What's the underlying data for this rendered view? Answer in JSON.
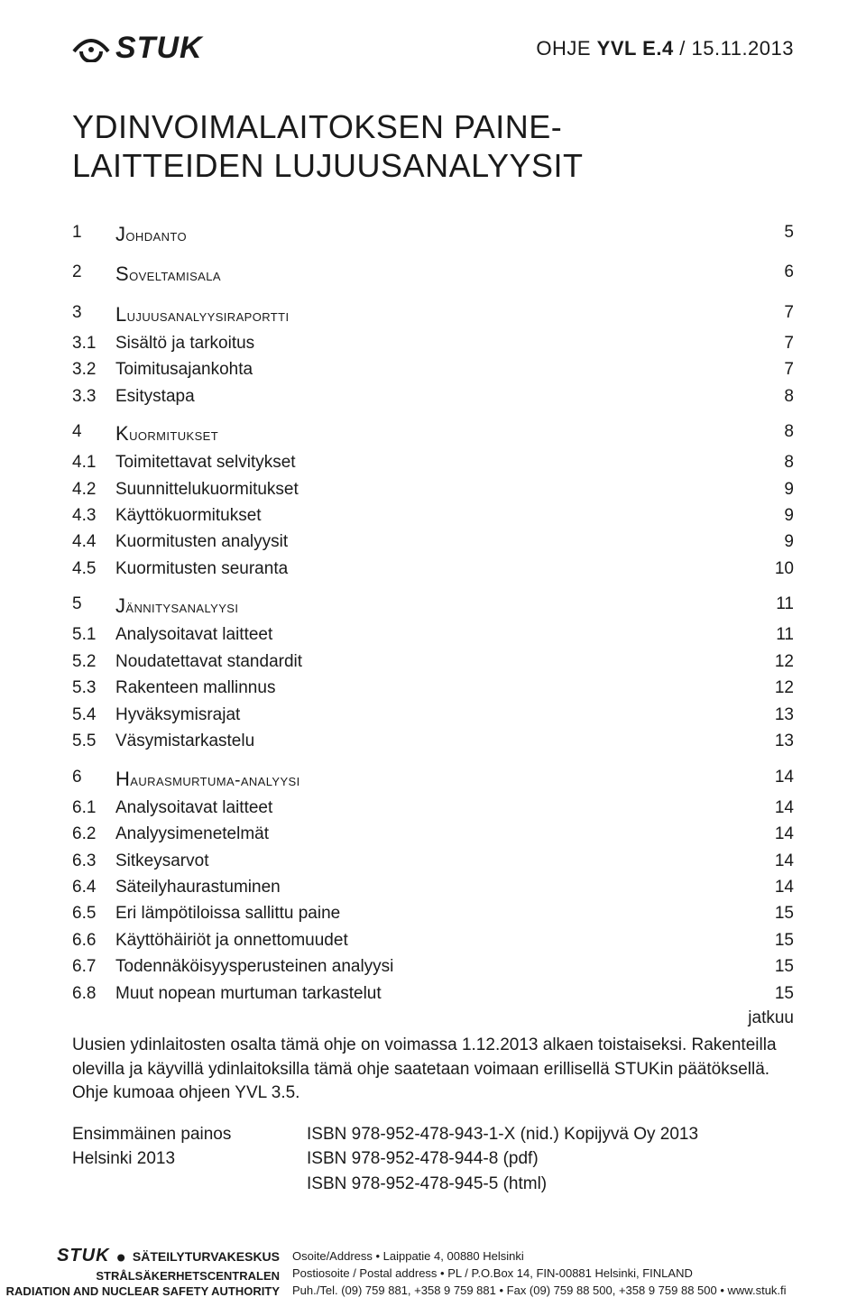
{
  "colors": {
    "text": "#1a1a1a",
    "background": "#ffffff"
  },
  "header": {
    "logo_text": "STUK",
    "doc_ref_prefix": "OHJE ",
    "doc_ref_bold": "YVL E.4",
    "doc_ref_suffix": " / 15.11.2013"
  },
  "title_line1": "YDINVOIMALAITOKSEN PAINE-",
  "title_line2": "LAITTEIDEN LUJUUSANALYYSIT",
  "toc": [
    {
      "type": "section",
      "num": "1",
      "label": "Johdanto",
      "page": "5"
    },
    {
      "type": "gap"
    },
    {
      "type": "section",
      "num": "2",
      "label": "Soveltamisala",
      "page": "6"
    },
    {
      "type": "gap"
    },
    {
      "type": "section",
      "num": "3",
      "label": "Lujuusanalyysiraportti",
      "page": "7"
    },
    {
      "type": "sub",
      "num": "3.1",
      "label": "Sisältö ja tarkoitus",
      "page": "7"
    },
    {
      "type": "sub",
      "num": "3.2",
      "label": "Toimitusajankohta",
      "page": "7"
    },
    {
      "type": "sub",
      "num": "3.3",
      "label": "Esitystapa",
      "page": "8"
    },
    {
      "type": "gap"
    },
    {
      "type": "section",
      "num": "4",
      "label": "Kuormitukset",
      "page": "8"
    },
    {
      "type": "sub",
      "num": "4.1",
      "label": "Toimitettavat selvitykset",
      "page": "8"
    },
    {
      "type": "sub",
      "num": "4.2",
      "label": "Suunnittelukuormitukset",
      "page": "9"
    },
    {
      "type": "sub",
      "num": "4.3",
      "label": "Käyttökuormitukset",
      "page": "9"
    },
    {
      "type": "sub",
      "num": "4.4",
      "label": "Kuormitusten analyysit",
      "page": "9"
    },
    {
      "type": "sub",
      "num": "4.5",
      "label": "Kuormitusten seuranta",
      "page": "10"
    },
    {
      "type": "gap"
    },
    {
      "type": "section",
      "num": "5",
      "label": "Jännitysanalyysi",
      "page": "11"
    },
    {
      "type": "sub",
      "num": "5.1",
      "label": "Analysoitavat laitteet",
      "page": "11"
    },
    {
      "type": "sub",
      "num": "5.2",
      "label": "Noudatettavat standardit",
      "page": "12"
    },
    {
      "type": "sub",
      "num": "5.3",
      "label": "Rakenteen mallinnus",
      "page": "12"
    },
    {
      "type": "sub",
      "num": "5.4",
      "label": "Hyväksymisrajat",
      "page": "13"
    },
    {
      "type": "sub",
      "num": "5.5",
      "label": "Väsymistarkastelu",
      "page": "13"
    },
    {
      "type": "gap"
    },
    {
      "type": "section",
      "num": "6",
      "label": "Haurasmurtuma-analyysi",
      "page": "14"
    },
    {
      "type": "sub",
      "num": "6.1",
      "label": "Analysoitavat laitteet",
      "page": "14"
    },
    {
      "type": "sub",
      "num": "6.2",
      "label": "Analyysimenetelmät",
      "page": "14"
    },
    {
      "type": "sub",
      "num": "6.3",
      "label": "Sitkeysarvot",
      "page": "14"
    },
    {
      "type": "sub",
      "num": "6.4",
      "label": "Säteilyhaurastuminen",
      "page": "14"
    },
    {
      "type": "sub",
      "num": "6.5",
      "label": "Eri lämpötiloissa sallittu paine",
      "page": "15"
    },
    {
      "type": "sub",
      "num": "6.6",
      "label": "Käyttöhäiriöt ja onnettomuudet",
      "page": "15"
    },
    {
      "type": "sub",
      "num": "6.7",
      "label": "Todennäköisyysperusteinen analyysi",
      "page": "15"
    },
    {
      "type": "sub",
      "num": "6.8",
      "label": "Muut nopean murtuman tarkastelut",
      "page": "15"
    }
  ],
  "jatkuu": "jatkuu",
  "note": "Uusien ydinlaitosten osalta tämä ohje on voimassa 1.12.2013 alkaen toistaiseksi. Rakenteilla olevilla ja käyvillä ydinlaitoksilla tämä ohje saatetaan voimaan erillisellä STUKin päätöksellä. Ohje kumoaa ohjeen YVL 3.5.",
  "pub": {
    "left1": "Ensimmäinen painos",
    "right1": "ISBN 978-952-478-943-1-X (nid.) Kopijyvä Oy 2013",
    "left2": "Helsinki 2013",
    "right2": "ISBN 978-952-478-944-8 (pdf)",
    "right3": "ISBN 978-952-478-945-5 (html)"
  },
  "footer": {
    "org_line1_a": "STUK",
    "org_line1_b": "SÄTEILYTURVAKESKUS",
    "org_line2": "STRÅLSÄKERHETSCENTRALEN",
    "org_line3": "RADIATION AND NUCLEAR SAFETY AUTHORITY",
    "addr_line1": "Osoite/Address • Laippatie 4, 00880 Helsinki",
    "addr_line2": "Postiosoite / Postal address • PL / P.O.Box 14, FIN-00881 Helsinki, FINLAND",
    "addr_line3": "Puh./Tel. (09) 759 881, +358 9 759 881 • Fax (09) 759 88 500, +358 9 759 88 500 • www.stuk.fi"
  }
}
